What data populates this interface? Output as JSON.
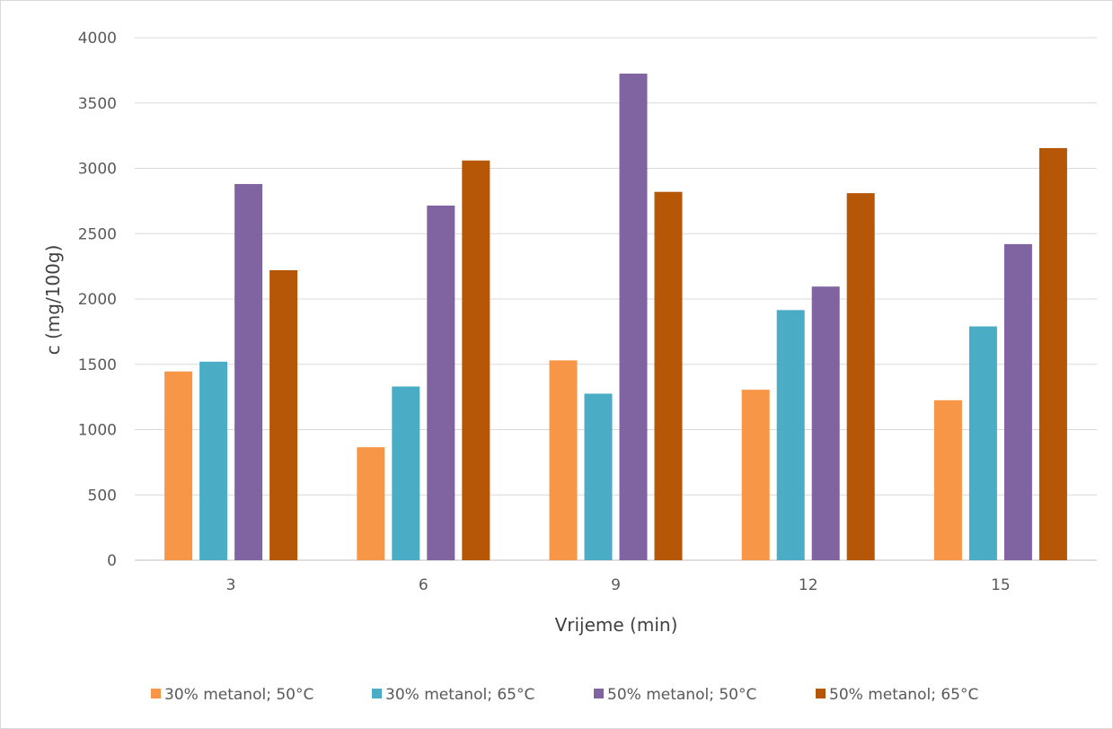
{
  "chart_data": {
    "type": "bar",
    "title": "",
    "xlabel": "Vrijeme  (min)",
    "ylabel": "c  (mg/100g)",
    "categories": [
      "3",
      "6",
      "9",
      "12",
      "15"
    ],
    "ylim": [
      0,
      4000
    ],
    "yticks": [
      "0",
      "500",
      "1000",
      "1500",
      "2000",
      "2500",
      "3000",
      "3500",
      "4000"
    ],
    "grid": true,
    "legend_position": "bottom",
    "series": [
      {
        "name": "30% metanol; 50°C",
        "color": "#f79646",
        "values": [
          1445,
          865,
          1530,
          1305,
          1225
        ]
      },
      {
        "name": "30% metanol; 65°C",
        "color": "#4bacc6",
        "values": [
          1520,
          1330,
          1275,
          1915,
          1790
        ]
      },
      {
        "name": "50% metanol; 50°C",
        "color": "#8064a2",
        "values": [
          2880,
          2715,
          3725,
          2095,
          2420
        ]
      },
      {
        "name": "50% metanol; 65°C",
        "color": "#b65708",
        "values": [
          2220,
          3060,
          2820,
          2810,
          3155
        ]
      }
    ]
  }
}
